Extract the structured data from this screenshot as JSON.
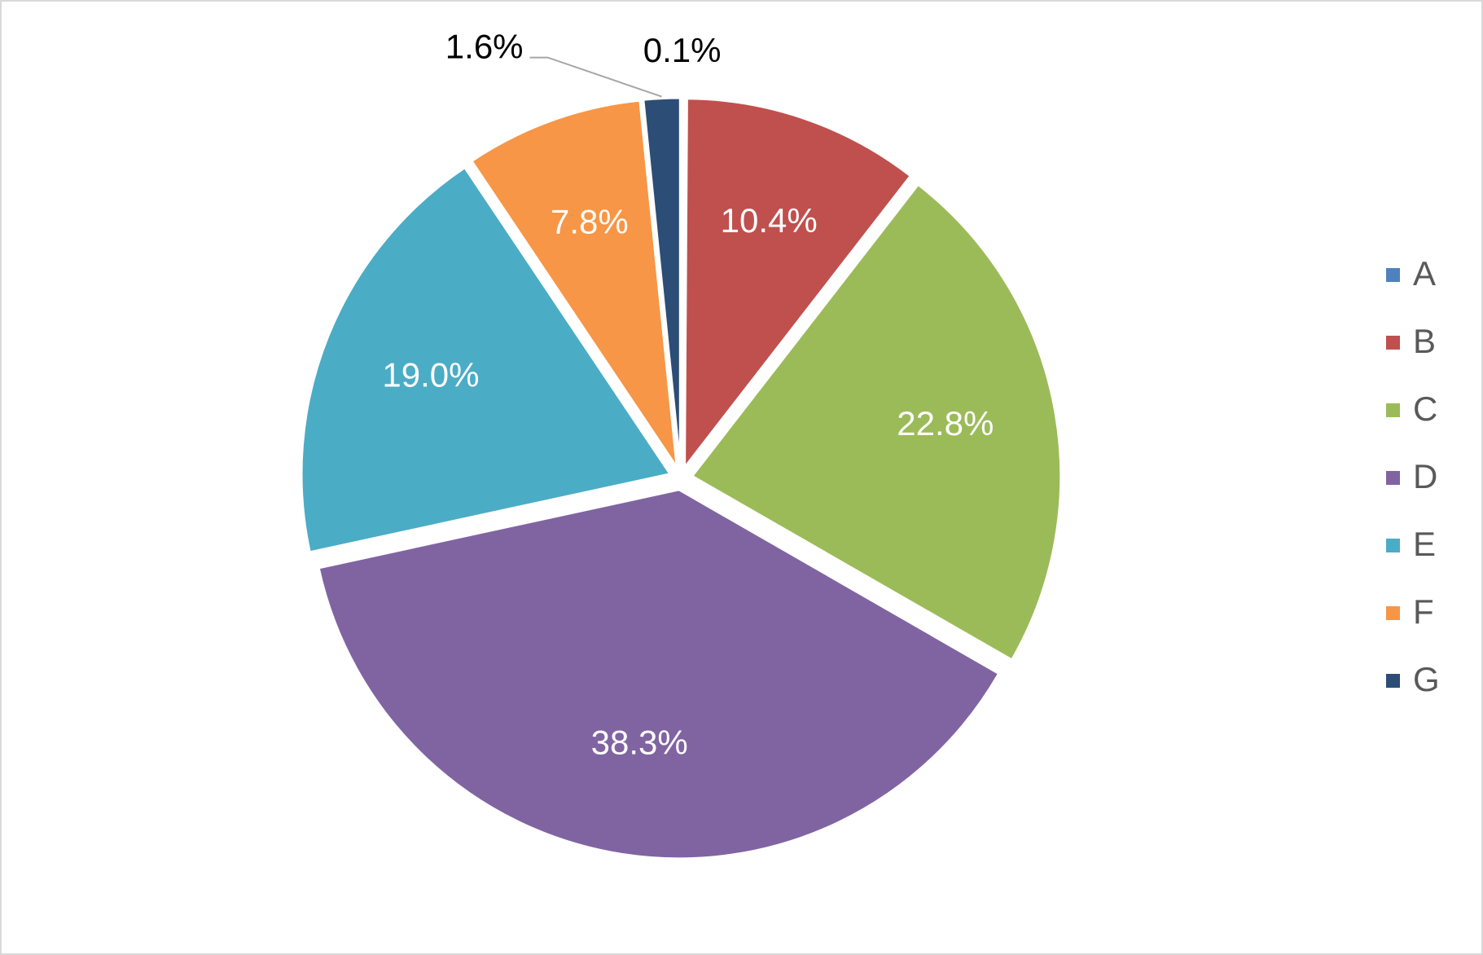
{
  "chart_data": {
    "type": "pie",
    "categories": [
      "A",
      "B",
      "C",
      "D",
      "E",
      "F",
      "G"
    ],
    "values": [
      0.1,
      10.4,
      22.8,
      38.3,
      19.0,
      7.8,
      1.6
    ],
    "value_labels": [
      "0.1%",
      "10.4%",
      "22.8%",
      "38.3%",
      "19.0%",
      "7.8%",
      "1.6%"
    ],
    "colors": [
      "#4f81bd",
      "#c0504d",
      "#9bbb59",
      "#8064a2",
      "#4bacc6",
      "#f79646",
      "#2c4d75"
    ],
    "legend": "right"
  }
}
